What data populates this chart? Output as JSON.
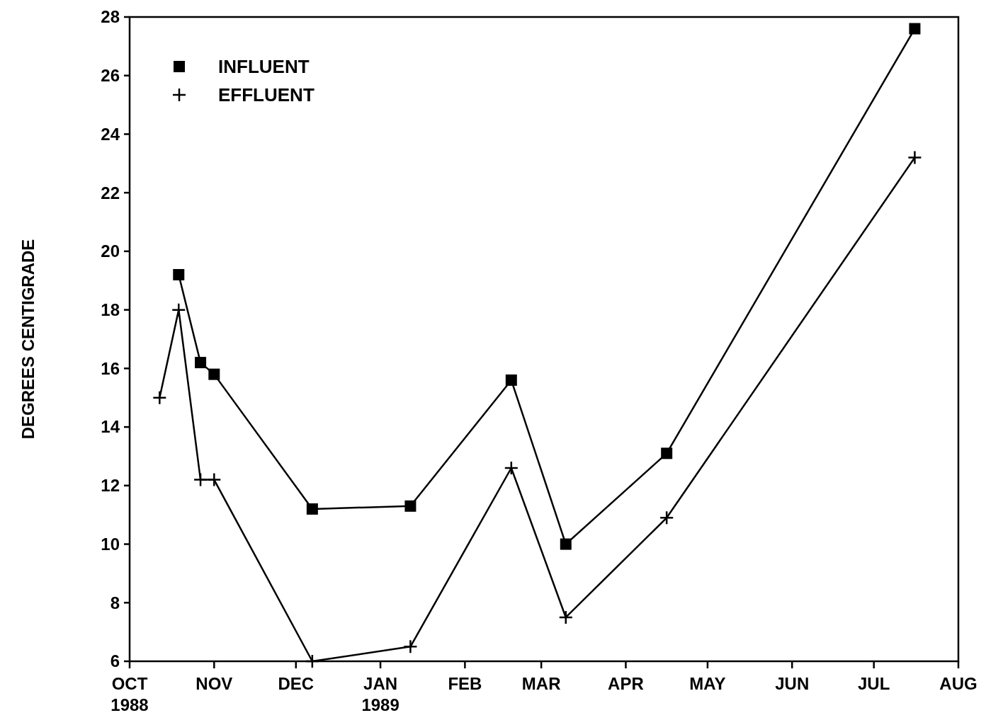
{
  "chart_data": {
    "type": "line",
    "ylabel": "DEGREES CENTIGRADE",
    "xlim": [
      "1988-10-01",
      "1989-08-01"
    ],
    "xticks": [
      {
        "value": "1988-10-01",
        "label": "OCT\n1988"
      },
      {
        "value": "1988-11-01",
        "label": "NOV"
      },
      {
        "value": "1988-12-01",
        "label": "DEC"
      },
      {
        "value": "1989-01-01",
        "label": "JAN\n1989"
      },
      {
        "value": "1989-02-01",
        "label": "FEB"
      },
      {
        "value": "1989-03-01",
        "label": "MAR"
      },
      {
        "value": "1989-04-01",
        "label": "APR"
      },
      {
        "value": "1989-05-01",
        "label": "MAY"
      },
      {
        "value": "1989-06-01",
        "label": "JUN"
      },
      {
        "value": "1989-07-01",
        "label": "JUL"
      },
      {
        "value": "1989-08-01",
        "label": "AUG"
      }
    ],
    "ylim": [
      6,
      28
    ],
    "yticks": [
      6,
      8,
      10,
      12,
      14,
      16,
      18,
      20,
      22,
      24,
      26,
      28
    ],
    "grid": false,
    "legend": "top left",
    "line_style": "solid",
    "series": [
      {
        "name": "INFLUENT",
        "color": "#000000",
        "marker": "square",
        "x": [
          "1988-10-19",
          "1988-10-27",
          "1988-11-01",
          "1988-12-07",
          "1989-01-12",
          "1989-02-18",
          "1989-03-10",
          "1989-04-16",
          "1989-07-16"
        ],
        "values": [
          19.2,
          16.2,
          15.8,
          11.2,
          11.3,
          15.6,
          10.0,
          13.1,
          27.6
        ]
      },
      {
        "name": "EFFLUENT",
        "color": "#000000",
        "marker": "cross",
        "x": [
          "1988-10-12",
          "1988-10-19",
          "1988-10-27",
          "1988-11-01",
          "1988-12-07",
          "1989-01-12",
          "1989-02-18",
          "1989-03-10",
          "1989-04-16",
          "1989-07-16"
        ],
        "values": [
          15.0,
          18.0,
          12.2,
          12.2,
          6.0,
          6.5,
          12.6,
          7.5,
          10.9,
          23.2
        ]
      }
    ]
  }
}
